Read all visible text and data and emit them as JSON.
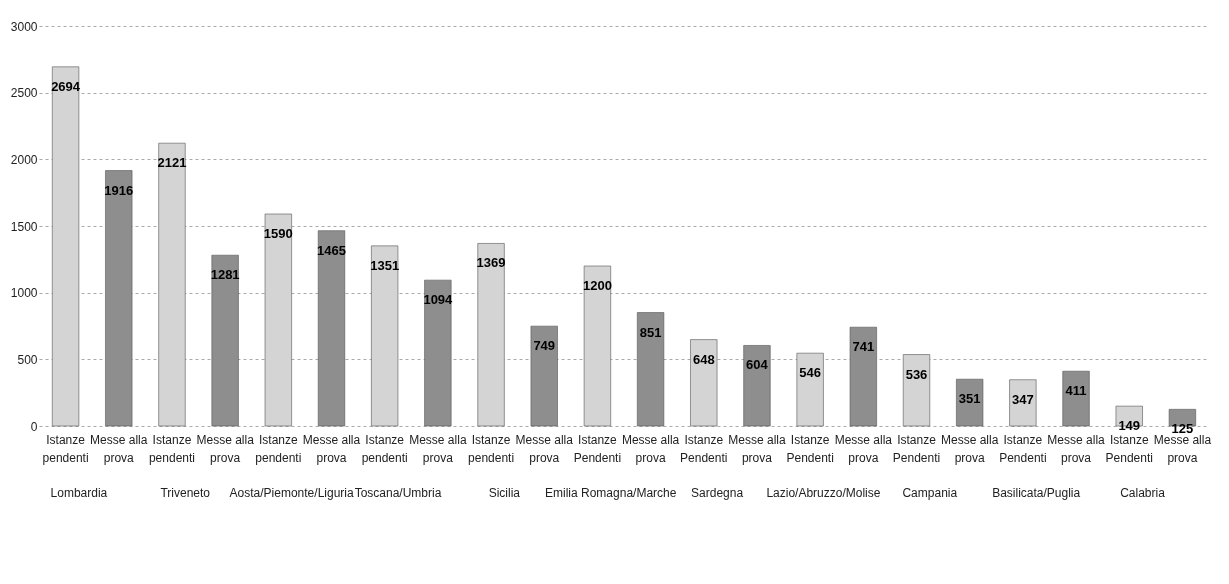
{
  "chart_data": {
    "type": "bar",
    "categories": [
      "Istanze pendenti",
      "Messe alla prova",
      "Istanze pendenti",
      "Messe alla prova",
      "Istanze pendenti",
      "Messe alla prova",
      "Istanze pendenti",
      "Messe alla prova",
      "Istanze pendenti",
      "Messe alla prova",
      "Istanze Pendenti",
      "Messe alla prova",
      "Istanze Pendenti",
      "Messe alla prova",
      "Istanze Pendenti",
      "Messe alla prova",
      "Istanze Pendenti",
      "Messe alla prova",
      "Istanze Pendenti",
      "Messe alla prova",
      "Istanze Pendenti",
      "Messe alla prova"
    ],
    "values": [
      2694,
      1916,
      2121,
      1281,
      1590,
      1465,
      1351,
      1094,
      1369,
      749,
      1200,
      851,
      648,
      604,
      546,
      741,
      536,
      351,
      347,
      411,
      149,
      125
    ],
    "colors": [
      "#d4d4d4",
      "#8e8e8e",
      "#d4d4d4",
      "#8e8e8e",
      "#d4d4d4",
      "#8e8e8e",
      "#d4d4d4",
      "#8e8e8e",
      "#d4d4d4",
      "#8e8e8e",
      "#d4d4d4",
      "#8e8e8e",
      "#d4d4d4",
      "#8e8e8e",
      "#d4d4d4",
      "#8e8e8e",
      "#d4d4d4",
      "#8e8e8e",
      "#d4d4d4",
      "#8e8e8e",
      "#d4d4d4",
      "#8e8e8e"
    ],
    "annotations": [
      "Lombardia",
      "Triveneto",
      "Aosta/Piemonte/Liguria",
      "Toscana/Umbria",
      "Sicilia",
      "Emilia Romagna/Marche",
      "Sardegna",
      "Lazio/Abruzzo/Molise",
      "Campania",
      "Basilicata/Puglia",
      "Calabria"
    ],
    "ylim": [
      0,
      3000
    ],
    "yticks": [
      0,
      500,
      1000,
      1500,
      2000,
      2500,
      3000
    ],
    "grid": "y",
    "data_labels": true
  }
}
